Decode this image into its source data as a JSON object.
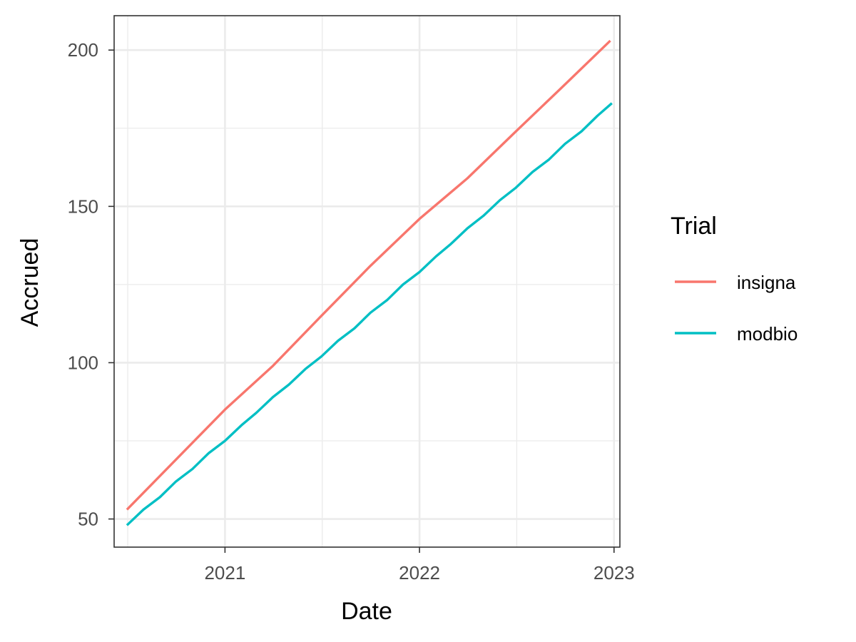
{
  "chart_data": {
    "type": "line",
    "xlabel": "Date",
    "ylabel": "Accrued",
    "x_ticks": [
      {
        "date": "2021-01-01",
        "label": "2021"
      },
      {
        "date": "2022-01-01",
        "label": "2022"
      },
      {
        "date": "2023-01-01",
        "label": "2023"
      }
    ],
    "y_ticks": [
      50,
      100,
      150,
      200
    ],
    "xlim": [
      "2020-06-07",
      "2023-01-12"
    ],
    "ylim": [
      41,
      211
    ],
    "grid": true,
    "legend": {
      "title": "Trial",
      "position": "right"
    },
    "series": [
      {
        "name": "insigna",
        "color": "#F8766D",
        "points": [
          {
            "x": "2020-07-01",
            "y": 53
          },
          {
            "x": "2020-10-01",
            "y": 69
          },
          {
            "x": "2021-01-01",
            "y": 85
          },
          {
            "x": "2021-04-01",
            "y": 99
          },
          {
            "x": "2021-07-01",
            "y": 115
          },
          {
            "x": "2021-10-01",
            "y": 131
          },
          {
            "x": "2022-01-01",
            "y": 146
          },
          {
            "x": "2022-04-01",
            "y": 159
          },
          {
            "x": "2022-07-01",
            "y": 174
          },
          {
            "x": "2022-10-01",
            "y": 189
          },
          {
            "x": "2022-12-25",
            "y": 203
          }
        ]
      },
      {
        "name": "modbio",
        "color": "#00BFC4",
        "points": [
          {
            "x": "2020-07-01",
            "y": 48
          },
          {
            "x": "2020-08-01",
            "y": 53
          },
          {
            "x": "2020-09-01",
            "y": 57
          },
          {
            "x": "2020-10-01",
            "y": 62
          },
          {
            "x": "2020-11-01",
            "y": 66
          },
          {
            "x": "2020-12-01",
            "y": 71
          },
          {
            "x": "2021-01-01",
            "y": 75
          },
          {
            "x": "2021-02-01",
            "y": 80
          },
          {
            "x": "2021-03-01",
            "y": 84
          },
          {
            "x": "2021-04-01",
            "y": 89
          },
          {
            "x": "2021-05-01",
            "y": 93
          },
          {
            "x": "2021-06-01",
            "y": 98
          },
          {
            "x": "2021-07-01",
            "y": 102
          },
          {
            "x": "2021-08-01",
            "y": 107
          },
          {
            "x": "2021-09-01",
            "y": 111
          },
          {
            "x": "2021-10-01",
            "y": 116
          },
          {
            "x": "2021-11-01",
            "y": 120
          },
          {
            "x": "2021-12-01",
            "y": 125
          },
          {
            "x": "2022-01-01",
            "y": 129
          },
          {
            "x": "2022-02-01",
            "y": 134
          },
          {
            "x": "2022-03-01",
            "y": 138
          },
          {
            "x": "2022-04-01",
            "y": 143
          },
          {
            "x": "2022-05-01",
            "y": 147
          },
          {
            "x": "2022-06-01",
            "y": 152
          },
          {
            "x": "2022-07-01",
            "y": 156
          },
          {
            "x": "2022-08-01",
            "y": 161
          },
          {
            "x": "2022-09-01",
            "y": 165
          },
          {
            "x": "2022-10-01",
            "y": 170
          },
          {
            "x": "2022-11-01",
            "y": 174
          },
          {
            "x": "2022-12-01",
            "y": 179
          },
          {
            "x": "2022-12-28",
            "y": 183
          }
        ]
      }
    ]
  }
}
